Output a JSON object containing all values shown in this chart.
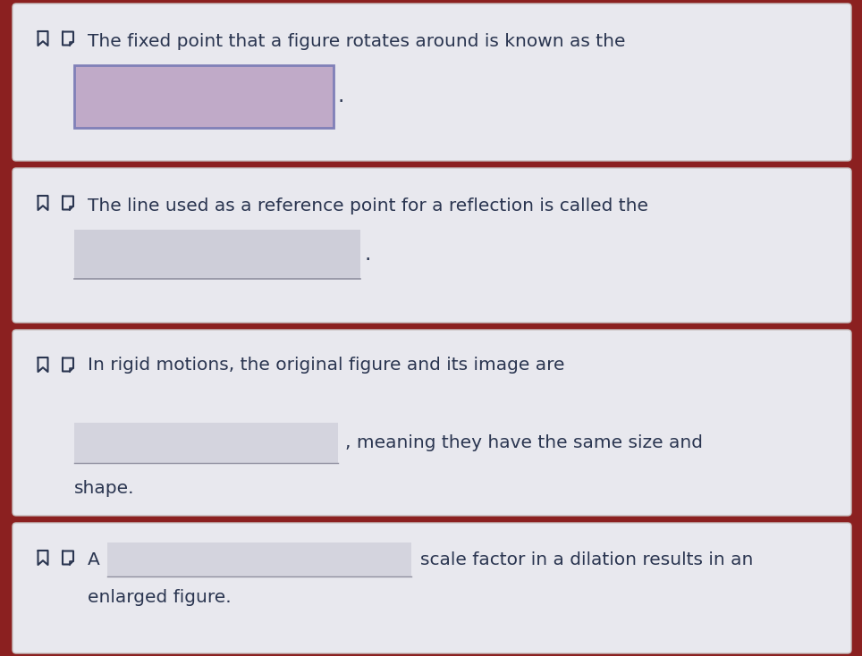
{
  "bg_color": "#8B2020",
  "card_color": "#e8e8ee",
  "card_border_color": "#c8c0c0",
  "text_color": "#2a3550",
  "input_box_color_1": "#c0aac8",
  "input_box_border_1": "#8080b8",
  "input_box_color_2": "#c8c8d4",
  "input_box_border_2": "#a0a0b0",
  "input_line_color": "#9090a0",
  "font_size": 14.5,
  "cards": [
    {
      "question": "The fixed point that a figure rotates around is known as the",
      "type": "box_pink"
    },
    {
      "question": "The line used as a reference point for a reflection is called the",
      "type": "box_gray"
    },
    {
      "question": "In rigid motions, the original figure and its image are",
      "type": "line_blank",
      "second_line": ", meaning they have the same size and",
      "third_line": "shape."
    },
    {
      "question": "A",
      "type": "inline_blank",
      "rest_of_line": "scale factor in a dilation results in an",
      "second_line": "enlarged figure."
    }
  ]
}
